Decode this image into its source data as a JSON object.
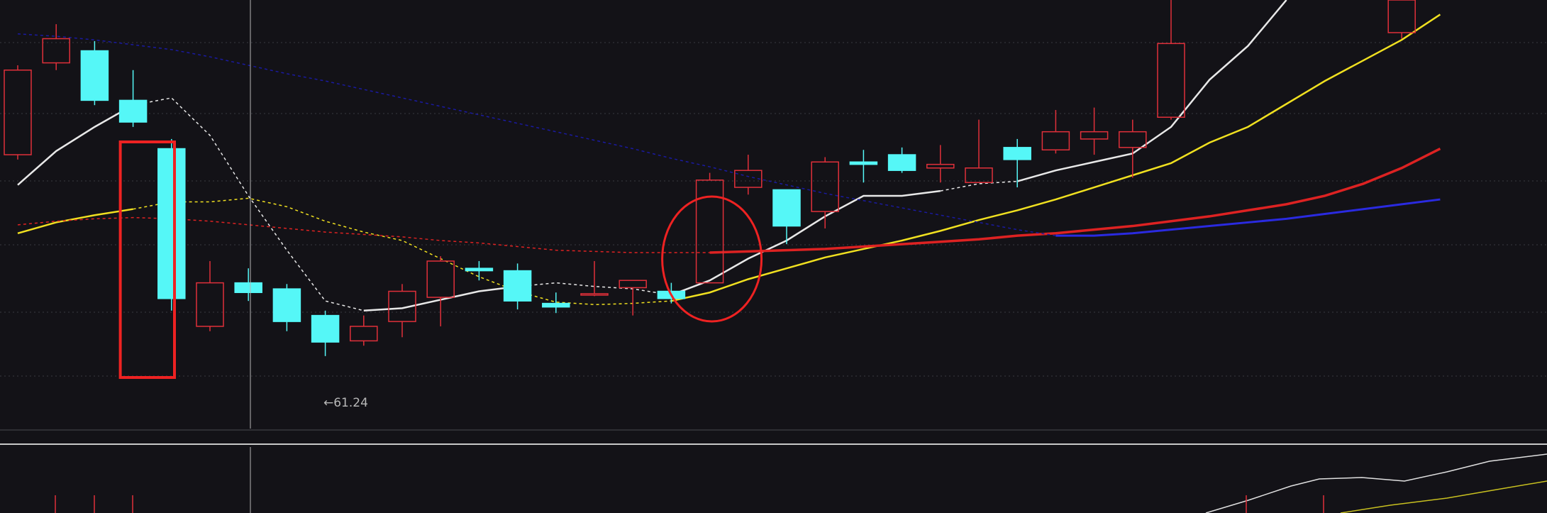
{
  "colors": {
    "background": "#131217",
    "up": "#e0303a",
    "down": "#55f7f7",
    "grid": "#3a3a42",
    "crosshair": "#b4b4b4",
    "ma_white": "#e8e8e8",
    "ma_yellow": "#f0e020",
    "ma_red": "#dd2222",
    "ma_blue": "#1a1aa0",
    "annotation": "#ee2222"
  },
  "labels": {
    "low_price_marker": "←61.24"
  },
  "chart_data": {
    "type": "candlestick",
    "title": "",
    "xlabel": "",
    "ylabel": "",
    "ylim": [
      59.0,
      90.7
    ],
    "grid": true,
    "x": [
      1,
      2,
      3,
      4,
      5,
      6,
      7,
      8,
      9,
      10,
      11,
      12,
      13,
      14,
      15,
      16,
      17,
      18,
      19,
      20,
      21,
      22,
      23,
      24,
      25,
      26,
      27,
      28,
      29,
      30,
      31,
      32,
      33,
      34,
      35,
      36,
      37,
      38
    ],
    "candles": [
      {
        "open": 77.9,
        "close": 84.9,
        "high": 85.3,
        "low": 77.5,
        "dir": "up"
      },
      {
        "open": 85.5,
        "close": 87.5,
        "high": 88.7,
        "low": 84.9,
        "dir": "up"
      },
      {
        "open": 86.5,
        "close": 82.4,
        "high": 87.3,
        "low": 82.0,
        "dir": "down"
      },
      {
        "open": 82.4,
        "close": 80.6,
        "high": 84.9,
        "low": 80.2,
        "dir": "down"
      },
      {
        "open": 78.4,
        "close": 66.0,
        "high": 79.2,
        "low": 65.0,
        "dir": "down"
      },
      {
        "open": 63.7,
        "close": 67.3,
        "high": 69.1,
        "low": 63.3,
        "dir": "up"
      },
      {
        "open": 67.3,
        "close": 66.5,
        "high": 68.5,
        "low": 65.8,
        "dir": "down"
      },
      {
        "open": 66.8,
        "close": 64.1,
        "high": 67.2,
        "low": 63.3,
        "dir": "down"
      },
      {
        "open": 64.6,
        "close": 62.4,
        "high": 65.0,
        "low": 61.24,
        "dir": "down"
      },
      {
        "open": 62.5,
        "close": 63.7,
        "high": 64.6,
        "low": 62.1,
        "dir": "up"
      },
      {
        "open": 64.1,
        "close": 66.6,
        "high": 67.2,
        "low": 62.8,
        "dir": "up"
      },
      {
        "open": 66.1,
        "close": 69.1,
        "high": 69.5,
        "low": 63.7,
        "dir": "up"
      },
      {
        "open": 68.5,
        "close": 68.3,
        "high": 69.1,
        "low": 67.5,
        "dir": "down"
      },
      {
        "open": 68.3,
        "close": 65.8,
        "high": 68.9,
        "low": 65.1,
        "dir": "down"
      },
      {
        "open": 65.6,
        "close": 65.3,
        "high": 66.5,
        "low": 64.8,
        "dir": "down"
      },
      {
        "open": 66.4,
        "close": 66.4,
        "high": 69.1,
        "low": 66.2,
        "dir": "up"
      },
      {
        "open": 66.9,
        "close": 67.5,
        "high": 67.5,
        "low": 64.6,
        "dir": "up"
      },
      {
        "open": 66.6,
        "close": 66.0,
        "high": 67.3,
        "low": 65.6,
        "dir": "down"
      },
      {
        "open": 67.3,
        "close": 75.8,
        "high": 76.4,
        "low": 67.3,
        "dir": "up"
      },
      {
        "open": 75.2,
        "close": 76.6,
        "high": 77.9,
        "low": 74.6,
        "dir": "up"
      },
      {
        "open": 75.0,
        "close": 72.0,
        "high": 75.0,
        "low": 70.5,
        "dir": "down"
      },
      {
        "open": 73.2,
        "close": 77.3,
        "high": 77.7,
        "low": 71.8,
        "dir": "up"
      },
      {
        "open": 77.3,
        "close": 77.1,
        "high": 78.3,
        "low": 75.6,
        "dir": "down"
      },
      {
        "open": 77.9,
        "close": 76.6,
        "high": 78.5,
        "low": 76.4,
        "dir": "down"
      },
      {
        "open": 76.8,
        "close": 77.1,
        "high": 78.7,
        "low": 75.6,
        "dir": "up"
      },
      {
        "open": 75.6,
        "close": 76.8,
        "high": 80.8,
        "low": 75.6,
        "dir": "up"
      },
      {
        "open": 78.5,
        "close": 77.5,
        "high": 79.2,
        "low": 75.2,
        "dir": "down"
      },
      {
        "open": 78.3,
        "close": 79.8,
        "high": 81.6,
        "low": 78.0,
        "dir": "up"
      },
      {
        "open": 79.2,
        "close": 79.8,
        "high": 81.8,
        "low": 77.9,
        "dir": "up"
      },
      {
        "open": 78.5,
        "close": 79.8,
        "high": 80.8,
        "low": 76.0,
        "dir": "up"
      },
      {
        "open": 81.0,
        "close": 87.1,
        "high": 90.7,
        "low": 80.8,
        "dir": "up"
      },
      {
        "open": 88.0,
        "close": 90.7,
        "high": 90.7,
        "low": 87.5,
        "dir": "up"
      }
    ],
    "candle_x": [
      1,
      2,
      3,
      4,
      5,
      6,
      7,
      8,
      9,
      10,
      11,
      12,
      13,
      14,
      15,
      16,
      17,
      18,
      19,
      20,
      21,
      22,
      23,
      24,
      25,
      26,
      27,
      28,
      29,
      30,
      31,
      37
    ],
    "series": [
      {
        "color": "white",
        "style": "mixed",
        "values": [
          75.4,
          78.2,
          80.2,
          82.0,
          82.6,
          79.5,
          74.5,
          70.0,
          65.8,
          65.0,
          65.2,
          65.9,
          66.6,
          67.0,
          67.3,
          67.0,
          66.8,
          66.3,
          67.5,
          69.3,
          70.8,
          72.8,
          74.5,
          74.5,
          74.9,
          75.5,
          75.7,
          76.6,
          77.3,
          78.0,
          80.2,
          84.1,
          86.9,
          90.7,
          null,
          null,
          null,
          null
        ]
      },
      {
        "color": "yellow",
        "style": "mixed",
        "values": [
          71.4,
          72.3,
          72.9,
          73.4,
          74.0,
          74.0,
          74.3,
          73.6,
          72.4,
          71.5,
          70.8,
          69.3,
          67.8,
          66.6,
          65.7,
          65.5,
          65.6,
          65.8,
          66.5,
          67.6,
          68.5,
          69.4,
          70.1,
          70.8,
          71.6,
          72.5,
          73.3,
          74.2,
          75.2,
          76.2,
          77.2,
          78.9,
          80.2,
          82.1,
          84.0,
          85.7,
          87.4,
          89.5
        ]
      },
      {
        "color": "red",
        "style": "mixed",
        "values": [
          72.1,
          72.4,
          72.6,
          72.7,
          72.6,
          72.4,
          72.1,
          71.8,
          71.5,
          71.3,
          71.1,
          70.8,
          70.6,
          70.3,
          70.0,
          69.9,
          69.8,
          69.8,
          69.8,
          69.9,
          70.0,
          70.1,
          70.3,
          70.5,
          70.7,
          70.9,
          71.2,
          71.4,
          71.7,
          72.0,
          72.4,
          72.8,
          73.3,
          73.8,
          74.5,
          75.5,
          76.8,
          78.4
        ]
      },
      {
        "color": "blue",
        "style": "mixed",
        "values": [
          87.9,
          87.7,
          87.4,
          87.0,
          86.6,
          86.0,
          85.3,
          84.6,
          84.0,
          83.3,
          82.6,
          81.9,
          81.2,
          80.5,
          79.8,
          79.1,
          78.4,
          77.6,
          76.9,
          76.1,
          75.4,
          74.7,
          74.1,
          73.5,
          72.9,
          72.3,
          71.7,
          71.2,
          71.2,
          71.4,
          71.7,
          72.0,
          72.3,
          72.6,
          73.0,
          73.4,
          73.8,
          74.2
        ]
      }
    ],
    "annotations": [
      {
        "shape": "rectangle",
        "around_candles": [
          4,
          5,
          6
        ]
      },
      {
        "shape": "ellipse",
        "around_candles": [
          19
        ]
      }
    ]
  }
}
